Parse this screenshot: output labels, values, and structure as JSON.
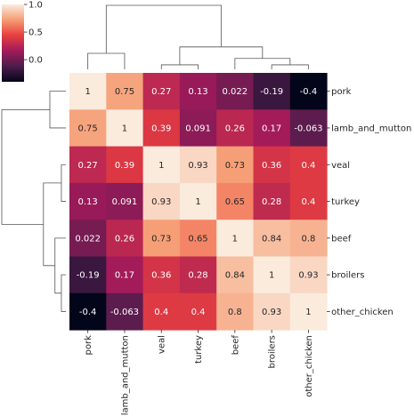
{
  "chart_data": {
    "type": "heatmap",
    "title": "",
    "xlabel": "",
    "ylabel": "",
    "labels": [
      "pork",
      "lamb_and_mutton",
      "veal",
      "turkey",
      "beef",
      "broilers",
      "other_chicken"
    ],
    "matrix": [
      [
        1,
        0.75,
        0.27,
        0.13,
        0.022,
        -0.19,
        -0.4
      ],
      [
        0.75,
        1,
        0.39,
        0.091,
        0.26,
        0.17,
        -0.063
      ],
      [
        0.27,
        0.39,
        1,
        0.93,
        0.73,
        0.36,
        0.4
      ],
      [
        0.13,
        0.091,
        0.93,
        1,
        0.65,
        0.28,
        0.4
      ],
      [
        0.022,
        0.26,
        0.73,
        0.65,
        1,
        0.84,
        0.8
      ],
      [
        -0.19,
        0.17,
        0.36,
        0.28,
        0.84,
        1,
        0.93
      ],
      [
        -0.4,
        -0.063,
        0.4,
        0.4,
        0.8,
        0.93,
        1
      ]
    ],
    "annotations": [
      [
        "1",
        "0.75",
        "0.27",
        "0.13",
        "0.022",
        "-0.19",
        "-0.4"
      ],
      [
        "0.75",
        "1",
        "0.39",
        "0.091",
        "0.26",
        "0.17",
        "-0.063"
      ],
      [
        "0.27",
        "0.39",
        "1",
        "0.93",
        "0.73",
        "0.36",
        "0.4"
      ],
      [
        "0.13",
        "0.091",
        "0.93",
        "1",
        "0.65",
        "0.28",
        "0.4"
      ],
      [
        "0.022",
        "0.26",
        "0.73",
        "0.65",
        "1",
        "0.84",
        "0.8"
      ],
      [
        "-0.19",
        "0.17",
        "0.36",
        "0.28",
        "0.84",
        "1",
        "0.93"
      ],
      [
        "-0.4",
        "-0.063",
        "0.4",
        "0.4",
        "0.8",
        "0.93",
        "1"
      ]
    ],
    "vmin": -0.4,
    "vmax": 1,
    "colormap": "rocket",
    "colormap_stops": [
      "#03051a",
      "#4c1d4b",
      "#a11a5b",
      "#e83f3f",
      "#f69c73",
      "#faebdd"
    ],
    "colorbar": {
      "ticks": [
        1.0,
        0.5,
        0.0
      ],
      "tick_labels": [
        "1.0",
        "0.5",
        "0.0"
      ],
      "placement": "top-left"
    },
    "dendrograms": {
      "column_linkage": [
        {
          "a": 0,
          "b": 1,
          "height": 0.25
        },
        {
          "a": 5,
          "b": 6,
          "height": 0.07
        },
        {
          "a": 2,
          "b": 3,
          "height": 0.07
        },
        {
          "a": "4",
          "b": "5,6",
          "height": 0.17
        },
        {
          "a": "2,3",
          "b": "4,5,6",
          "height": 0.35
        },
        {
          "a": "0,1",
          "b": "2,3,4,5,6",
          "height": 1.0
        }
      ]
    }
  }
}
